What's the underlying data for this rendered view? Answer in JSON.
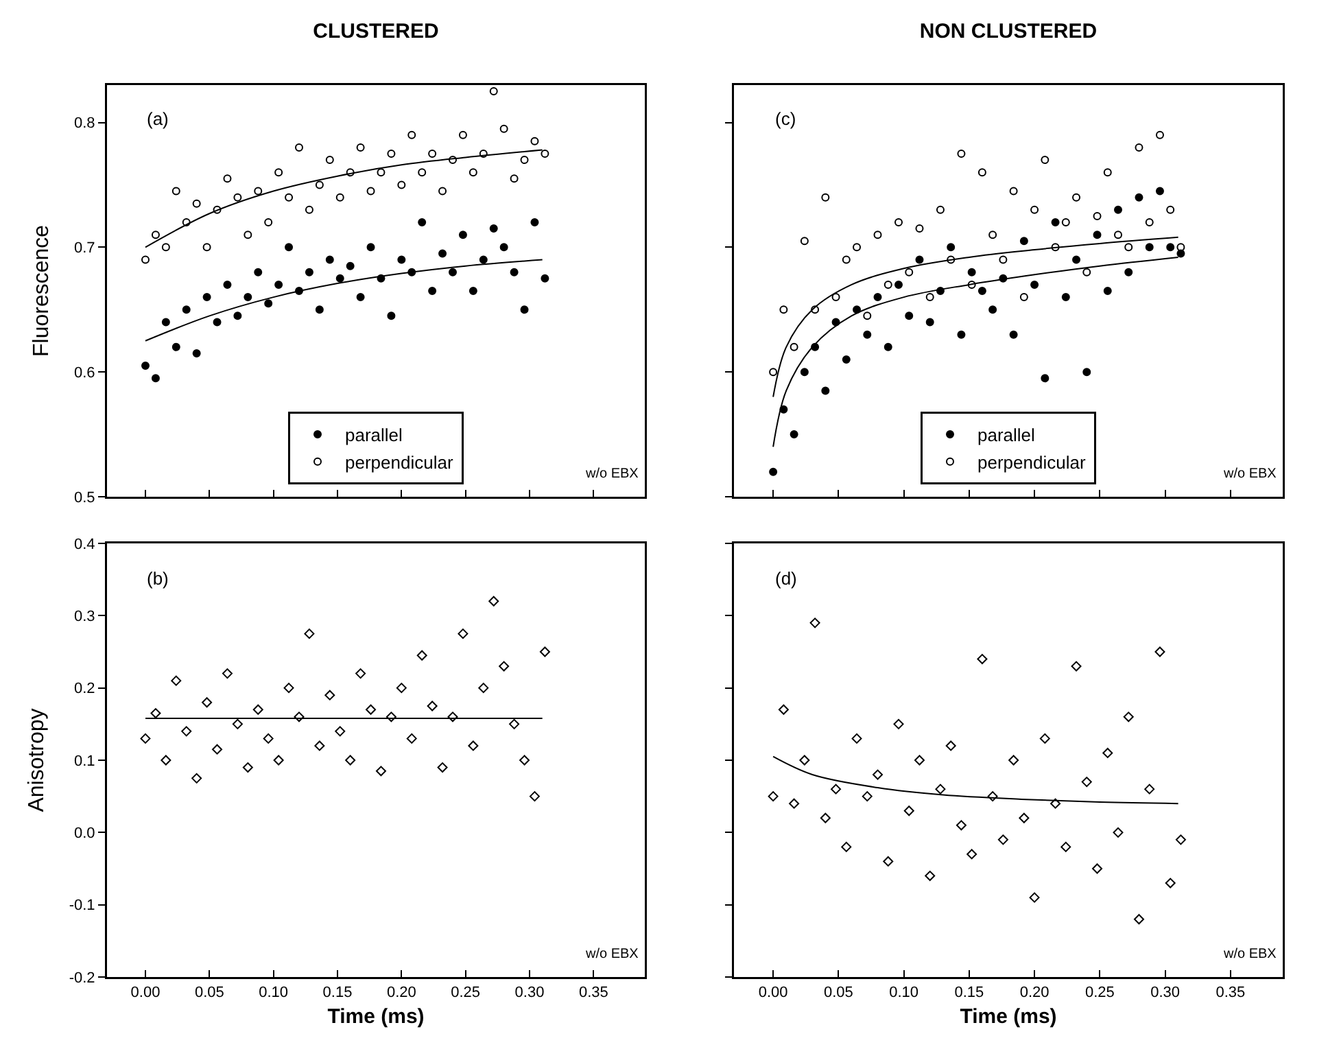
{
  "chart_data": [
    {
      "type": "scatter",
      "title": "CLUSTERED",
      "ylabel": "Fluorescence",
      "annotations": [
        "(a)",
        "w/o EBX"
      ],
      "xlim": [
        -0.03,
        0.39
      ],
      "ylim": [
        0.5,
        0.83
      ],
      "xticks": [
        {
          "value": 0,
          "label": null
        },
        {
          "value": 0.05,
          "label": null
        },
        {
          "value": 0.1,
          "label": null
        },
        {
          "value": 0.15,
          "label": null
        },
        {
          "value": 0.2,
          "label": null
        },
        {
          "value": 0.25,
          "label": null
        },
        {
          "value": 0.3,
          "label": null
        },
        {
          "value": 0.35,
          "label": null
        }
      ],
      "yticks": [
        {
          "value": 0.5,
          "label": "0.5"
        },
        {
          "value": 0.6,
          "label": "0.6"
        },
        {
          "value": 0.7,
          "label": "0.7"
        },
        {
          "value": 0.8,
          "label": "0.8"
        }
      ],
      "tick_labels": "y",
      "grid": false,
      "legend": "bottom",
      "x": [
        0,
        0.008,
        0.016,
        0.024,
        0.032,
        0.04,
        0.048,
        0.056,
        0.064,
        0.072,
        0.08,
        0.088,
        0.096,
        0.104,
        0.112,
        0.12,
        0.128,
        0.136,
        0.144,
        0.152,
        0.16,
        0.168,
        0.176,
        0.184,
        0.192,
        0.2,
        0.208,
        0.216,
        0.224,
        0.232,
        0.24,
        0.248,
        0.256,
        0.264,
        0.272,
        0.28,
        0.288,
        0.296,
        0.304,
        0.312
      ],
      "series": [
        {
          "name": "parallel",
          "color": "#000000",
          "marker": "circle",
          "values": [
            0.605,
            0.595,
            0.64,
            0.62,
            0.65,
            0.615,
            0.66,
            0.64,
            0.67,
            0.645,
            0.66,
            0.68,
            0.655,
            0.67,
            0.7,
            0.665,
            0.68,
            0.65,
            0.69,
            0.675,
            0.685,
            0.66,
            0.7,
            0.675,
            0.645,
            0.69,
            0.68,
            0.72,
            0.665,
            0.695,
            0.68,
            0.71,
            0.665,
            0.69,
            0.715,
            0.7,
            0.68,
            0.65,
            0.72,
            0.675
          ]
        },
        {
          "name": "perpendicular",
          "color": "#000000",
          "marker": "circle-open",
          "values": [
            0.69,
            0.71,
            0.7,
            0.745,
            0.72,
            0.735,
            0.7,
            0.73,
            0.755,
            0.74,
            0.71,
            0.745,
            0.72,
            0.76,
            0.74,
            0.78,
            0.73,
            0.75,
            0.77,
            0.74,
            0.76,
            0.78,
            0.745,
            0.76,
            0.775,
            0.75,
            0.79,
            0.76,
            0.775,
            0.745,
            0.77,
            0.79,
            0.76,
            0.775,
            0.825,
            0.795,
            0.755,
            0.77,
            0.785,
            0.775
          ]
        },
        {
          "type": "line",
          "color": "#000000",
          "marker": "none",
          "x": [
            0,
            0.05,
            0.1,
            0.15,
            0.2,
            0.25,
            0.31
          ],
          "values": [
            0.7,
            0.727,
            0.745,
            0.757,
            0.766,
            0.772,
            0.778
          ]
        },
        {
          "type": "line",
          "color": "#000000",
          "marker": "none",
          "x": [
            0,
            0.05,
            0.1,
            0.15,
            0.2,
            0.25,
            0.31
          ],
          "values": [
            0.625,
            0.645,
            0.66,
            0.671,
            0.679,
            0.685,
            0.69
          ]
        }
      ]
    },
    {
      "type": "scatter",
      "title": "NON CLUSTERED",
      "annotations": [
        "(c)",
        "w/o EBX"
      ],
      "xlim": [
        -0.03,
        0.39
      ],
      "ylim": [
        0.5,
        0.83
      ],
      "xticks": [
        {
          "value": 0,
          "label": null
        },
        {
          "value": 0.05,
          "label": null
        },
        {
          "value": 0.1,
          "label": null
        },
        {
          "value": 0.15,
          "label": null
        },
        {
          "value": 0.2,
          "label": null
        },
        {
          "value": 0.25,
          "label": null
        },
        {
          "value": 0.3,
          "label": null
        },
        {
          "value": 0.35,
          "label": null
        }
      ],
      "yticks": [
        {
          "value": 0.5,
          "label": null
        },
        {
          "value": 0.6,
          "label": null
        },
        {
          "value": 0.7,
          "label": null
        },
        {
          "value": 0.8,
          "label": null
        }
      ],
      "tick_labels": false,
      "grid": false,
      "legend": "bottom",
      "x": [
        0,
        0.008,
        0.016,
        0.024,
        0.032,
        0.04,
        0.048,
        0.056,
        0.064,
        0.072,
        0.08,
        0.088,
        0.096,
        0.104,
        0.112,
        0.12,
        0.128,
        0.136,
        0.144,
        0.152,
        0.16,
        0.168,
        0.176,
        0.184,
        0.192,
        0.2,
        0.208,
        0.216,
        0.224,
        0.232,
        0.24,
        0.248,
        0.256,
        0.264,
        0.272,
        0.28,
        0.288,
        0.296,
        0.304,
        0.312
      ],
      "series": [
        {
          "name": "parallel",
          "color": "#000000",
          "marker": "circle",
          "values": [
            0.52,
            0.57,
            0.55,
            0.6,
            0.62,
            0.585,
            0.64,
            0.61,
            0.65,
            0.63,
            0.66,
            0.62,
            0.67,
            0.645,
            0.69,
            0.64,
            0.665,
            0.7,
            0.63,
            0.68,
            0.665,
            0.65,
            0.675,
            0.63,
            0.705,
            0.67,
            0.595,
            0.72,
            0.66,
            0.69,
            0.6,
            0.71,
            0.665,
            0.73,
            0.68,
            0.74,
            0.7,
            0.745,
            0.7,
            0.695
          ]
        },
        {
          "name": "perpendicular",
          "color": "#000000",
          "marker": "circle-open",
          "values": [
            0.6,
            0.65,
            0.62,
            0.705,
            0.65,
            0.74,
            0.66,
            0.69,
            0.7,
            0.645,
            0.71,
            0.67,
            0.72,
            0.68,
            0.715,
            0.66,
            0.73,
            0.69,
            0.775,
            0.67,
            0.76,
            0.71,
            0.69,
            0.745,
            0.66,
            0.73,
            0.77,
            0.7,
            0.72,
            0.74,
            0.68,
            0.725,
            0.76,
            0.71,
            0.7,
            0.78,
            0.72,
            0.79,
            0.73,
            0.7
          ]
        },
        {
          "type": "line",
          "color": "#000000",
          "marker": "none",
          "x": [
            0,
            0.01,
            0.03,
            0.06,
            0.1,
            0.15,
            0.2,
            0.25,
            0.31
          ],
          "values": [
            0.58,
            0.62,
            0.65,
            0.67,
            0.683,
            0.692,
            0.698,
            0.703,
            0.708
          ]
        },
        {
          "type": "line",
          "color": "#000000",
          "marker": "none",
          "x": [
            0,
            0.01,
            0.03,
            0.06,
            0.1,
            0.15,
            0.2,
            0.25,
            0.31
          ],
          "values": [
            0.54,
            0.585,
            0.62,
            0.645,
            0.66,
            0.67,
            0.678,
            0.685,
            0.692
          ]
        }
      ]
    },
    {
      "type": "scatter",
      "xlabel": "Time (ms)",
      "ylabel": "Anisotropy",
      "annotations": [
        "(b)",
        "w/o EBX"
      ],
      "xlim": [
        -0.03,
        0.39
      ],
      "ylim": [
        -0.2,
        0.4
      ],
      "xticks": [
        {
          "value": 0,
          "label": "0.00"
        },
        {
          "value": 0.05,
          "label": "0.05"
        },
        {
          "value": 0.1,
          "label": "0.10"
        },
        {
          "value": 0.15,
          "label": "0.15"
        },
        {
          "value": 0.2,
          "label": "0.20"
        },
        {
          "value": 0.25,
          "label": "0.25"
        },
        {
          "value": 0.3,
          "label": "0.30"
        },
        {
          "value": 0.35,
          "label": "0.35"
        }
      ],
      "yticks": [
        {
          "value": -0.2,
          "label": "-0.2"
        },
        {
          "value": -0.1,
          "label": "-0.1"
        },
        {
          "value": 0,
          "label": "0.0"
        },
        {
          "value": 0.1,
          "label": "0.1"
        },
        {
          "value": 0.2,
          "label": "0.2"
        },
        {
          "value": 0.3,
          "label": "0.3"
        },
        {
          "value": 0.4,
          "label": "0.4"
        }
      ],
      "grid": false,
      "legend": false,
      "x": [
        0,
        0.008,
        0.016,
        0.024,
        0.032,
        0.04,
        0.048,
        0.056,
        0.064,
        0.072,
        0.08,
        0.088,
        0.096,
        0.104,
        0.112,
        0.12,
        0.128,
        0.136,
        0.144,
        0.152,
        0.16,
        0.168,
        0.176,
        0.184,
        0.192,
        0.2,
        0.208,
        0.216,
        0.224,
        0.232,
        0.24,
        0.248,
        0.256,
        0.264,
        0.272,
        0.28,
        0.288,
        0.296,
        0.304,
        0.312
      ],
      "series": [
        {
          "color": "#000000",
          "marker": "diamond-open",
          "values": [
            0.13,
            0.165,
            0.1,
            0.21,
            0.14,
            0.075,
            0.18,
            0.115,
            0.22,
            0.15,
            0.09,
            0.17,
            0.13,
            0.1,
            0.2,
            0.16,
            0.275,
            0.12,
            0.19,
            0.14,
            0.1,
            0.22,
            0.17,
            0.085,
            0.16,
            0.2,
            0.13,
            0.245,
            0.175,
            0.09,
            0.16,
            0.275,
            0.12,
            0.2,
            0.32,
            0.23,
            0.15,
            0.1,
            0.05,
            0.25
          ]
        },
        {
          "type": "line",
          "color": "#000000",
          "marker": "none",
          "x": [
            0,
            0.31
          ],
          "values": [
            0.158,
            0.158
          ]
        }
      ]
    },
    {
      "type": "scatter",
      "xlabel": "Time (ms)",
      "annotations": [
        "(d)",
        "w/o EBX"
      ],
      "xlim": [
        -0.03,
        0.39
      ],
      "ylim": [
        -0.2,
        0.4
      ],
      "xticks": [
        {
          "value": 0,
          "label": "0.00"
        },
        {
          "value": 0.05,
          "label": "0.05"
        },
        {
          "value": 0.1,
          "label": "0.10"
        },
        {
          "value": 0.15,
          "label": "0.15"
        },
        {
          "value": 0.2,
          "label": "0.20"
        },
        {
          "value": 0.25,
          "label": "0.25"
        },
        {
          "value": 0.3,
          "label": "0.30"
        },
        {
          "value": 0.35,
          "label": "0.35"
        }
      ],
      "yticks": [
        {
          "value": -0.2,
          "label": null
        },
        {
          "value": -0.1,
          "label": null
        },
        {
          "value": 0,
          "label": null
        },
        {
          "value": 0.1,
          "label": null
        },
        {
          "value": 0.2,
          "label": null
        },
        {
          "value": 0.3,
          "label": null
        },
        {
          "value": 0.4,
          "label": null
        }
      ],
      "tick_labels": "x",
      "grid": false,
      "legend": false,
      "x": [
        0,
        0.008,
        0.016,
        0.024,
        0.032,
        0.04,
        0.048,
        0.056,
        0.064,
        0.072,
        0.08,
        0.088,
        0.096,
        0.104,
        0.112,
        0.12,
        0.128,
        0.136,
        0.144,
        0.152,
        0.16,
        0.168,
        0.176,
        0.184,
        0.192,
        0.2,
        0.208,
        0.216,
        0.224,
        0.232,
        0.24,
        0.248,
        0.256,
        0.264,
        0.272,
        0.28,
        0.288,
        0.296,
        0.304,
        0.312
      ],
      "series": [
        {
          "color": "#000000",
          "marker": "diamond-open",
          "values": [
            0.05,
            0.17,
            0.04,
            0.1,
            0.29,
            0.02,
            0.06,
            -0.02,
            0.13,
            0.05,
            0.08,
            -0.04,
            0.15,
            0.03,
            0.1,
            -0.06,
            0.06,
            0.12,
            0.01,
            -0.03,
            0.24,
            0.05,
            -0.01,
            0.1,
            0.02,
            -0.09,
            0.13,
            0.04,
            -0.02,
            0.23,
            0.07,
            -0.05,
            0.11,
            0,
            0.16,
            -0.12,
            0.06,
            0.25,
            -0.07,
            -0.01
          ]
        },
        {
          "type": "line",
          "color": "#000000",
          "marker": "none",
          "x": [
            0,
            0.03,
            0.08,
            0.13,
            0.19,
            0.25,
            0.31
          ],
          "values": [
            0.105,
            0.08,
            0.062,
            0.052,
            0.046,
            0.042,
            0.04
          ]
        }
      ]
    }
  ]
}
